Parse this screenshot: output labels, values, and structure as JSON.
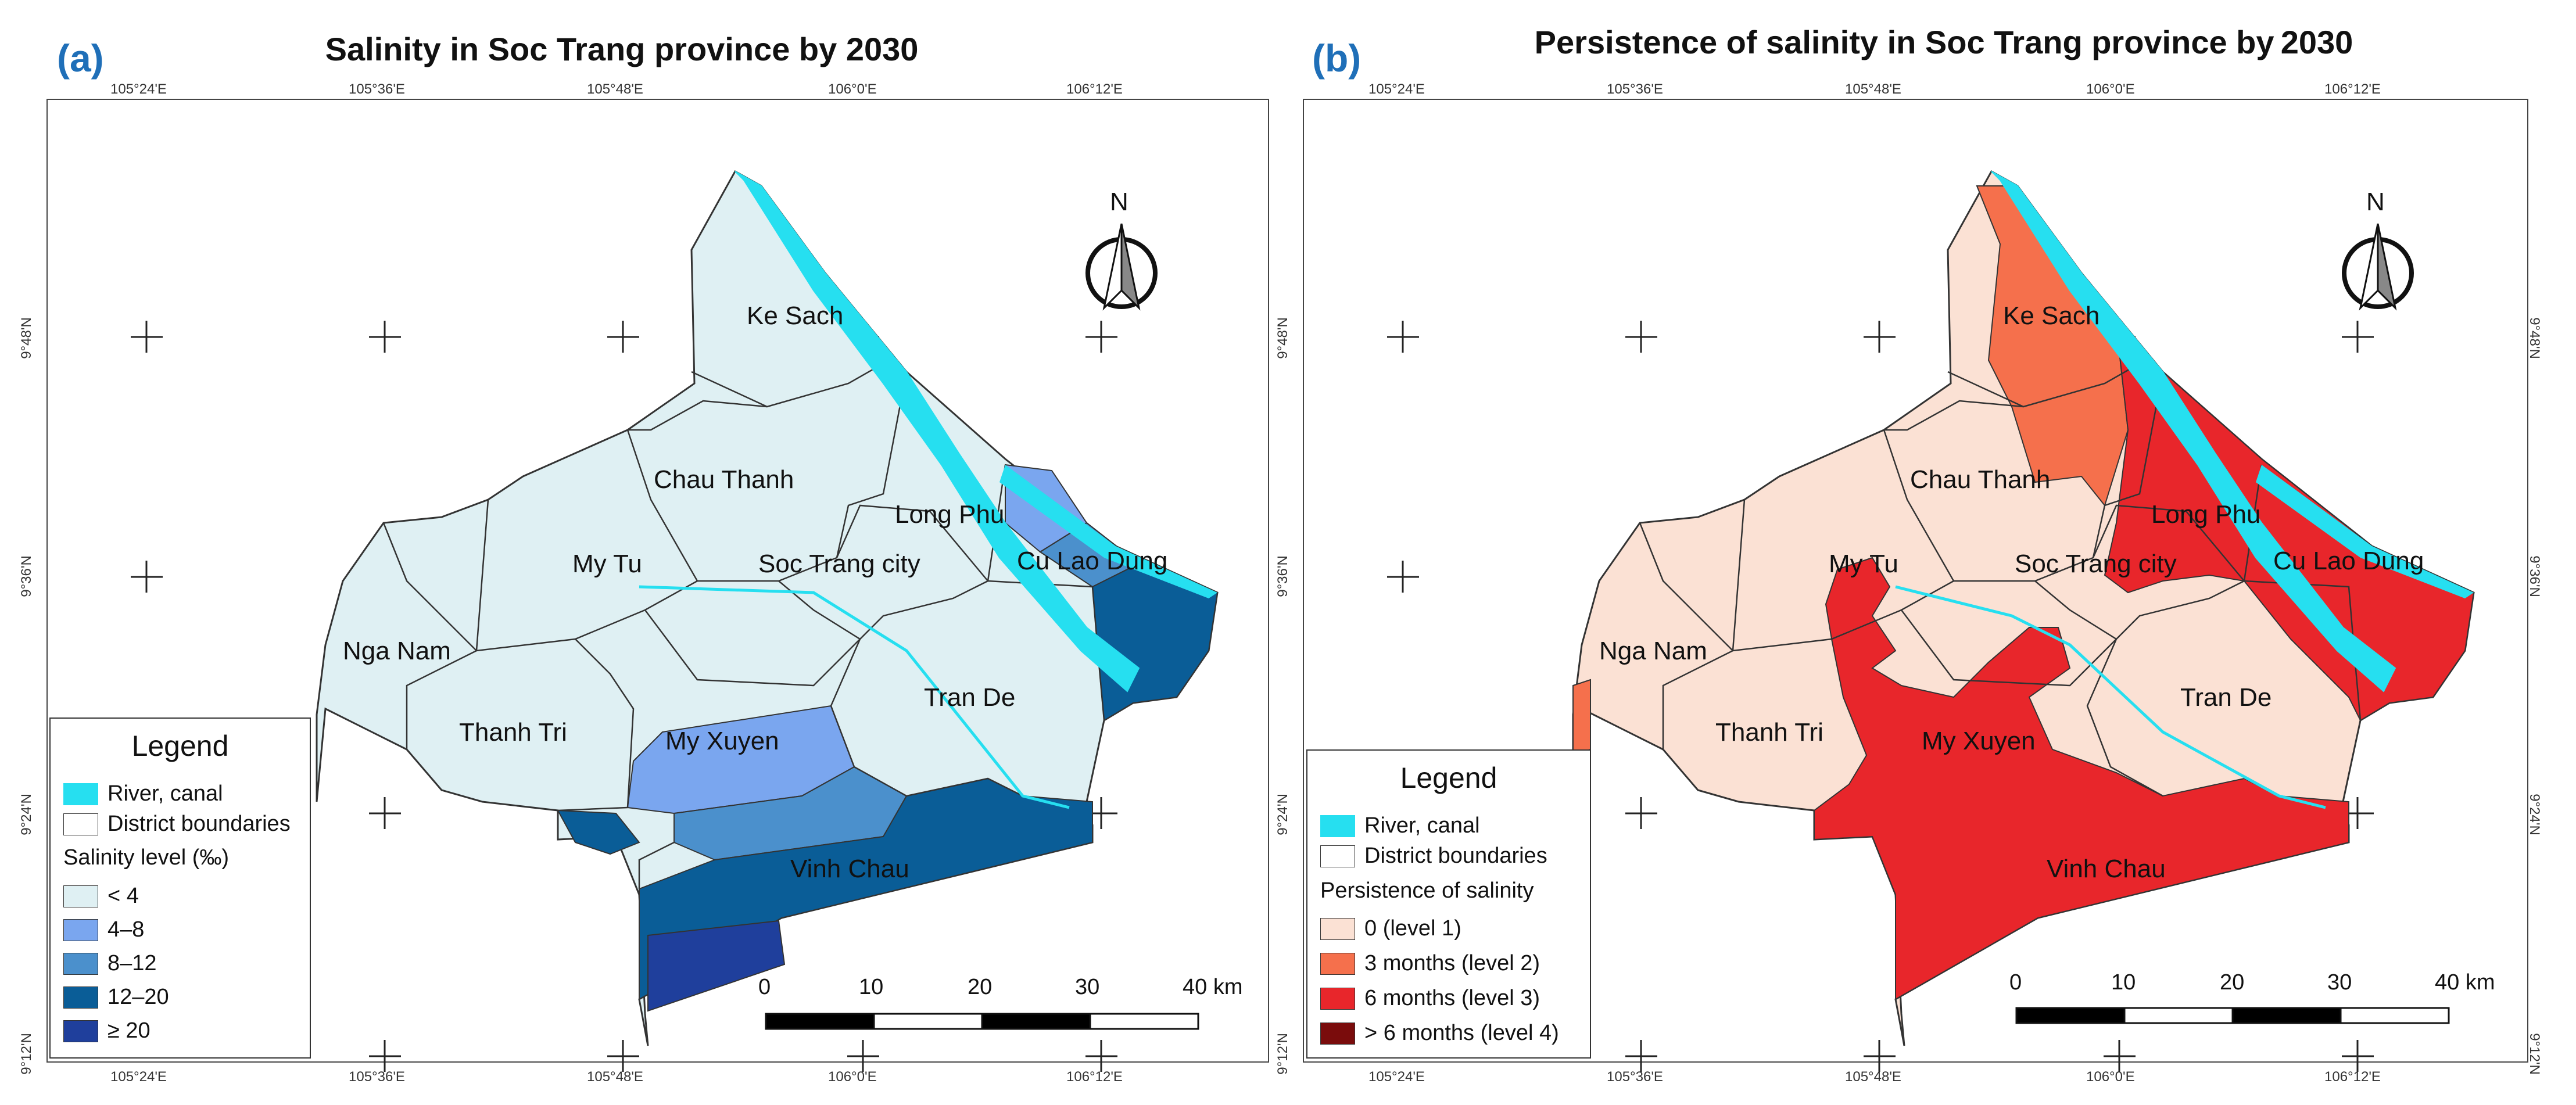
{
  "panels": [
    {
      "letter": "(a)",
      "title": "Salinity in Soc Trang province by 2030",
      "legend": {
        "title": "Legend",
        "river_label": "River, canal",
        "boundary_label": "District boundaries",
        "category_title": "Salinity level (‰)",
        "items": [
          {
            "label": "< 4",
            "color": "#dff0f3"
          },
          {
            "label": "4–8",
            "color": "#7aa6ef"
          },
          {
            "label": "8–12",
            "color": "#4b90cc"
          },
          {
            "label": "12–20",
            "color": "#0a5d97"
          },
          {
            "label": "≥ 20",
            "color": "#1f3f9c"
          }
        ]
      }
    },
    {
      "letter": "(b)",
      "title": "Persistence of salinity in Soc Trang province by 2030",
      "legend": {
        "title": "Legend",
        "river_label": "River, canal",
        "boundary_label": "District boundaries",
        "category_title": "Persistence of salinity",
        "items": [
          {
            "label": "0 (level 1)",
            "color": "#fbe1d4"
          },
          {
            "label": "3 months (level 2)",
            "color": "#f5704c"
          },
          {
            "label": "6 months (level 3)",
            "color": "#e8262b"
          },
          {
            "label": "> 6 months (level 4)",
            "color": "#7a0c0c"
          }
        ]
      }
    }
  ],
  "axis": {
    "lon_labels": [
      "105°24'E",
      "105°36'E",
      "105°48'E",
      "106°0'E",
      "106°12'E"
    ],
    "lat_labels": [
      "9°48'N",
      "9°36'N",
      "9°24'N",
      "9°12'N"
    ]
  },
  "districts": {
    "ke_sach": "Ke Sach",
    "chau_thanh": "Chau Thanh",
    "long_phu": "Long Phu",
    "my_tu": "My Tu",
    "soc_trang_city": "Soc Trang city",
    "cu_lao_dung": "Cu Lao Dung",
    "nga_nam": "Nga Nam",
    "tran_de": "Tran De",
    "thanh_tri": "Thanh Tri",
    "my_xuyen": "My Xuyen",
    "vinh_chau": "Vinh Chau"
  },
  "scale_bar": {
    "labels": [
      "0",
      "10",
      "20",
      "30",
      "40 km"
    ]
  },
  "north_label": "N",
  "colors": {
    "river": "#26dff0",
    "frame": "#444444"
  }
}
